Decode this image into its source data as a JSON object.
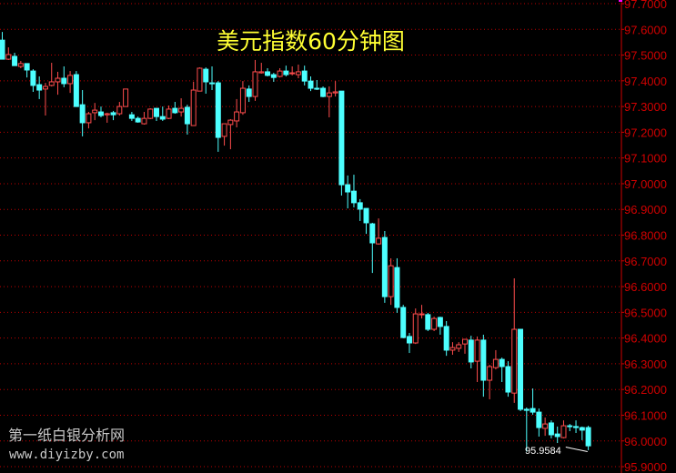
{
  "chart_data": {
    "type": "candlestick",
    "title": "美元指数60分钟图",
    "ylim": [
      95.9,
      97.7
    ],
    "y_ticks": [
      "97.7000",
      "97.6000",
      "97.5000",
      "97.4000",
      "97.3000",
      "97.2000",
      "97.1000",
      "97.0000",
      "96.9000",
      "96.8000",
      "96.7000",
      "96.6000",
      "96.5000",
      "96.4000",
      "96.3000",
      "96.2000",
      "96.1000",
      "96.0000",
      "95.9000"
    ],
    "grid": true,
    "low_annotation": "95.9584",
    "colors": {
      "up": "#ff4d4d",
      "down": "#4dffff",
      "grid": "#c00000",
      "axis": "#d00000",
      "title": "#ffff33",
      "background": "#000000"
    },
    "ohlc_fields": [
      "open",
      "high",
      "low",
      "close"
    ],
    "candles": [
      [
        97.558,
        97.59,
        97.484,
        97.484
      ],
      [
        97.484,
        97.53,
        97.481,
        97.502
      ],
      [
        97.495,
        97.509,
        97.459,
        97.459
      ],
      [
        97.456,
        97.477,
        97.449,
        97.467
      ],
      [
        97.467,
        97.467,
        97.413,
        97.442
      ],
      [
        97.438,
        97.445,
        97.357,
        97.382
      ],
      [
        97.385,
        97.417,
        97.329,
        97.364
      ],
      [
        97.368,
        97.392,
        97.265,
        97.378
      ],
      [
        97.382,
        97.47,
        97.378,
        97.396
      ],
      [
        97.396,
        97.435,
        97.346,
        97.41
      ],
      [
        97.41,
        97.456,
        97.375,
        97.389
      ],
      [
        97.389,
        97.438,
        97.353,
        97.421
      ],
      [
        97.424,
        97.438,
        97.3,
        97.3
      ],
      [
        97.307,
        97.364,
        97.184,
        97.237
      ],
      [
        97.237,
        97.279,
        97.215,
        97.272
      ],
      [
        97.276,
        97.314,
        97.247,
        97.286
      ],
      [
        97.279,
        97.3,
        97.258,
        97.265
      ],
      [
        97.268,
        97.276,
        97.237,
        97.272
      ],
      [
        97.276,
        97.283,
        97.247,
        97.268
      ],
      [
        97.272,
        97.318,
        97.265,
        97.3
      ],
      [
        97.3,
        97.368,
        97.3,
        97.368
      ],
      [
        97.268,
        97.279,
        97.244,
        97.254
      ],
      [
        97.254,
        97.261,
        97.237,
        97.24
      ],
      [
        97.233,
        97.279,
        97.23,
        97.254
      ],
      [
        97.254,
        97.293,
        97.251,
        97.29
      ],
      [
        97.293,
        97.293,
        97.244,
        97.261
      ],
      [
        97.261,
        97.3,
        97.244,
        97.251
      ],
      [
        97.254,
        97.304,
        97.251,
        97.29
      ],
      [
        97.293,
        97.318,
        97.272,
        97.276
      ],
      [
        97.279,
        97.332,
        97.261,
        97.293
      ],
      [
        97.297,
        97.307,
        97.191,
        97.233
      ],
      [
        97.226,
        97.396,
        97.226,
        97.364
      ],
      [
        97.36,
        97.452,
        97.36,
        97.449
      ],
      [
        97.445,
        97.452,
        97.35,
        97.396
      ],
      [
        97.392,
        97.456,
        97.364,
        97.389
      ],
      [
        97.392,
        97.399,
        97.124,
        97.18
      ],
      [
        97.184,
        97.233,
        97.148,
        97.233
      ],
      [
        97.23,
        97.251,
        97.134,
        97.247
      ],
      [
        97.244,
        97.329,
        97.219,
        97.279
      ],
      [
        97.276,
        97.399,
        97.268,
        97.371
      ],
      [
        97.368,
        97.382,
        97.318,
        97.339
      ],
      [
        97.339,
        97.481,
        97.322,
        97.435
      ],
      [
        97.431,
        97.47,
        97.428,
        97.435
      ],
      [
        97.435,
        97.449,
        97.417,
        97.421
      ],
      [
        97.424,
        97.431,
        97.396,
        97.413
      ],
      [
        97.417,
        97.449,
        97.413,
        97.438
      ],
      [
        97.438,
        97.459,
        97.417,
        97.424
      ],
      [
        97.428,
        97.456,
        97.421,
        97.431
      ],
      [
        97.424,
        97.463,
        97.41,
        97.435
      ],
      [
        97.438,
        97.459,
        97.382,
        97.399
      ],
      [
        97.399,
        97.417,
        97.36,
        97.371
      ],
      [
        97.371,
        97.403,
        97.364,
        97.368
      ],
      [
        97.371,
        97.378,
        97.336,
        97.339
      ],
      [
        97.339,
        97.378,
        97.258,
        97.353
      ],
      [
        97.353,
        97.399,
        97.339,
        97.357
      ],
      [
        97.36,
        97.36,
        96.954,
        96.996
      ],
      [
        96.996,
        97.032,
        96.904,
        96.968
      ],
      [
        96.971,
        97.035,
        96.908,
        96.926
      ],
      [
        96.926,
        96.94,
        96.855,
        96.901
      ],
      [
        96.904,
        96.904,
        96.805,
        96.848
      ],
      [
        96.844,
        96.848,
        96.653,
        96.77
      ],
      [
        96.766,
        96.865,
        96.763,
        96.788
      ],
      [
        96.791,
        96.816,
        96.537,
        96.561
      ],
      [
        96.561,
        96.71,
        96.529,
        96.681
      ],
      [
        96.674,
        96.71,
        96.498,
        96.519
      ],
      [
        96.519,
        96.529,
        96.399,
        96.402
      ],
      [
        96.406,
        96.42,
        96.342,
        96.381
      ],
      [
        96.381,
        96.515,
        96.377,
        96.494
      ],
      [
        96.491,
        96.529,
        96.476,
        96.494
      ],
      [
        96.491,
        96.498,
        96.427,
        96.434
      ],
      [
        96.434,
        96.483,
        96.427,
        96.476
      ],
      [
        96.48,
        96.483,
        96.413,
        96.445
      ],
      [
        96.445,
        96.466,
        96.331,
        96.353
      ],
      [
        96.353,
        96.384,
        96.335,
        96.363
      ],
      [
        96.36,
        96.384,
        96.346,
        96.374
      ],
      [
        96.377,
        96.395,
        96.339,
        96.395
      ],
      [
        96.392,
        96.409,
        96.282,
        96.307
      ],
      [
        96.31,
        96.406,
        96.229,
        96.392
      ],
      [
        96.392,
        96.413,
        96.172,
        96.236
      ],
      [
        96.236,
        96.296,
        96.162,
        96.289
      ],
      [
        96.285,
        96.353,
        96.278,
        96.317
      ],
      [
        96.317,
        96.324,
        96.229,
        96.289
      ],
      [
        96.289,
        96.31,
        96.172,
        96.19
      ],
      [
        96.186,
        96.632,
        96.148,
        96.434
      ],
      [
        96.434,
        96.434,
        96.116,
        96.123
      ],
      [
        96.123,
        96.13,
        95.9584,
        96.119
      ],
      [
        96.126,
        96.204,
        96.102,
        96.112
      ],
      [
        96.112,
        96.126,
        96.017,
        96.052
      ],
      [
        96.049,
        96.091,
        96.02,
        96.066
      ],
      [
        96.07,
        96.08,
        96.01,
        96.024
      ],
      [
        96.027,
        96.056,
        95.992,
        96.017
      ],
      [
        96.013,
        96.08,
        96.01,
        96.059
      ],
      [
        96.059,
        96.066,
        96.038,
        96.056
      ],
      [
        96.056,
        96.08,
        96.031,
        96.052
      ],
      [
        96.052,
        96.056,
        96.003,
        96.042
      ],
      [
        96.052,
        96.059,
        95.964,
        95.981
      ]
    ]
  },
  "watermark": {
    "name": "第一纸白银分析网",
    "url": "www.diyizby.com"
  }
}
